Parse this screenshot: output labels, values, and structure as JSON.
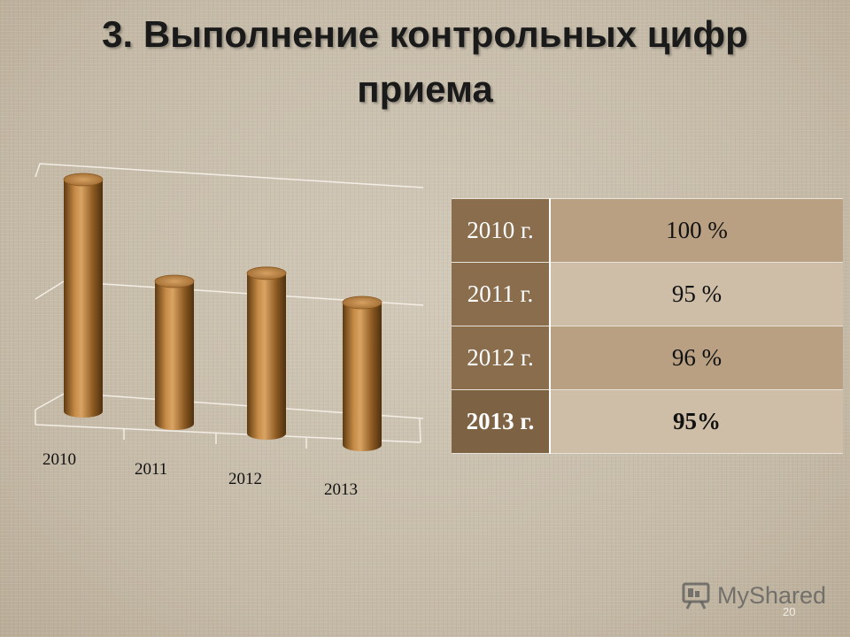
{
  "slide": {
    "title": "3. Выполнение контрольных цифр приема",
    "page_number": "20",
    "watermark": "MyShared"
  },
  "chart_data": {
    "type": "bar",
    "categories": [
      "2010",
      "2011",
      "2012",
      "2013"
    ],
    "values": [
      100,
      95,
      96,
      95
    ],
    "bar_color": "#a06a2c",
    "grid": true
  },
  "table": {
    "rows": [
      {
        "year": "2010 г.",
        "value": "100 %"
      },
      {
        "year": "2011 г.",
        "value": "95 %"
      },
      {
        "year": "2012 г.",
        "value": "96 %"
      },
      {
        "year": "2013 г.",
        "value": "95%"
      }
    ]
  }
}
